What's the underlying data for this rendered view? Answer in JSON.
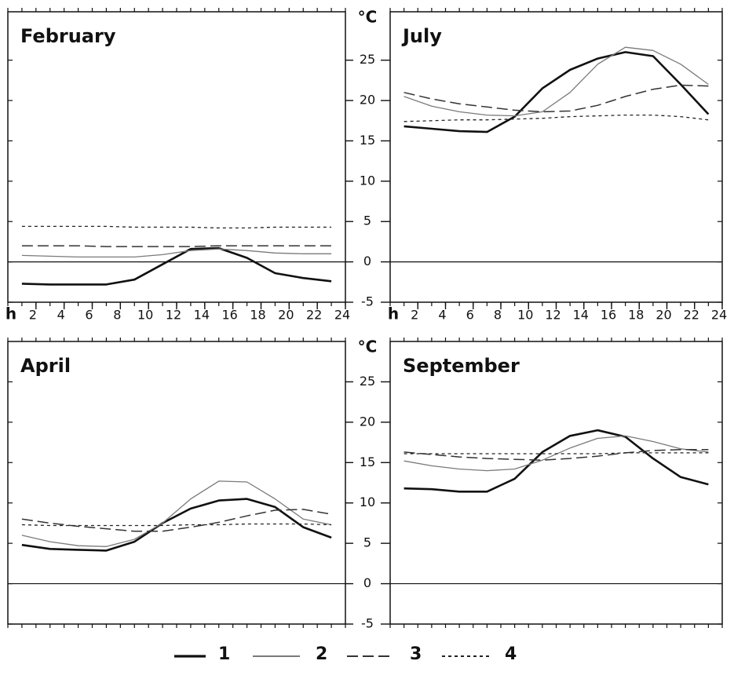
{
  "chart_data": [
    {
      "type": "line",
      "title": "February",
      "xlabel": "h",
      "ylabel": "°C",
      "x": [
        1,
        3,
        5,
        7,
        9,
        11,
        13,
        15,
        17,
        19,
        21,
        23
      ],
      "xlim": [
        0,
        24
      ],
      "ylim": [
        -5,
        31
      ],
      "xticks": [
        2,
        4,
        6,
        8,
        10,
        12,
        14,
        16,
        18,
        20,
        22,
        24
      ],
      "series": [
        {
          "values": [
            -2.7,
            -2.8,
            -2.8,
            -2.8,
            -2.2,
            -0.3,
            1.6,
            1.7,
            0.5,
            -1.4,
            -2.0,
            -2.4
          ]
        },
        {
          "values": [
            0.8,
            0.7,
            0.6,
            0.6,
            0.6,
            0.9,
            1.4,
            1.6,
            1.4,
            1.1,
            1.0,
            1.0
          ]
        },
        {
          "values": [
            2.0,
            2.0,
            2.0,
            1.9,
            1.9,
            1.9,
            1.9,
            2.0,
            2.0,
            2.0,
            2.0,
            2.0
          ]
        },
        {
          "values": [
            4.4,
            4.4,
            4.4,
            4.4,
            4.3,
            4.3,
            4.3,
            4.2,
            4.2,
            4.3,
            4.3,
            4.3
          ]
        }
      ]
    },
    {
      "type": "line",
      "title": "July",
      "xlabel": "h",
      "x": [
        1,
        3,
        5,
        7,
        9,
        11,
        13,
        15,
        17,
        19,
        21,
        23
      ],
      "xlim": [
        0,
        24
      ],
      "ylim": [
        -5,
        31
      ],
      "xticks": [
        2,
        4,
        6,
        8,
        10,
        12,
        14,
        16,
        18,
        20,
        22,
        24
      ],
      "yticks": [
        -5,
        0,
        5,
        10,
        15,
        20,
        25
      ],
      "series": [
        {
          "values": [
            16.8,
            16.5,
            16.2,
            16.1,
            18.0,
            21.5,
            23.8,
            25.2,
            26.0,
            25.5,
            22.0,
            18.3
          ]
        },
        {
          "values": [
            20.5,
            19.3,
            18.6,
            18.2,
            18.1,
            18.6,
            21.0,
            24.5,
            26.6,
            26.2,
            24.5,
            22.0
          ]
        },
        {
          "values": [
            21.0,
            20.2,
            19.6,
            19.2,
            18.8,
            18.6,
            18.7,
            19.4,
            20.5,
            21.4,
            21.9,
            21.8
          ]
        },
        {
          "values": [
            17.4,
            17.5,
            17.6,
            17.6,
            17.7,
            17.8,
            18.0,
            18.1,
            18.2,
            18.2,
            18.0,
            17.6
          ]
        }
      ]
    },
    {
      "type": "line",
      "title": "April",
      "ylabel": "°C",
      "x": [
        1,
        3,
        5,
        7,
        9,
        11,
        13,
        15,
        17,
        19,
        21,
        23
      ],
      "xlim": [
        0,
        24
      ],
      "ylim": [
        -5,
        30
      ],
      "series": [
        {
          "values": [
            4.8,
            4.3,
            4.2,
            4.1,
            5.2,
            7.5,
            9.3,
            10.3,
            10.5,
            9.5,
            7.0,
            5.7
          ]
        },
        {
          "values": [
            6.0,
            5.2,
            4.7,
            4.6,
            5.5,
            7.5,
            10.5,
            12.7,
            12.6,
            10.5,
            8.0,
            7.3
          ]
        },
        {
          "values": [
            8.0,
            7.5,
            7.1,
            6.8,
            6.5,
            6.5,
            7.0,
            7.6,
            8.4,
            9.1,
            9.2,
            8.6
          ]
        },
        {
          "values": [
            7.3,
            7.2,
            7.2,
            7.2,
            7.2,
            7.2,
            7.3,
            7.3,
            7.4,
            7.4,
            7.4,
            7.3
          ]
        }
      ]
    },
    {
      "type": "line",
      "title": "September",
      "x": [
        1,
        3,
        5,
        7,
        9,
        11,
        13,
        15,
        17,
        19,
        21,
        23
      ],
      "xlim": [
        0,
        24
      ],
      "ylim": [
        -5,
        30
      ],
      "yticks": [
        -5,
        0,
        5,
        10,
        15,
        20,
        25
      ],
      "series": [
        {
          "values": [
            11.8,
            11.7,
            11.4,
            11.4,
            13.0,
            16.3,
            18.3,
            19.0,
            18.2,
            15.5,
            13.2,
            12.3
          ]
        },
        {
          "values": [
            15.2,
            14.6,
            14.2,
            14.0,
            14.2,
            15.3,
            16.8,
            18.0,
            18.3,
            17.6,
            16.7,
            16.3
          ]
        },
        {
          "values": [
            16.3,
            16.0,
            15.7,
            15.5,
            15.4,
            15.3,
            15.5,
            15.8,
            16.2,
            16.5,
            16.6,
            16.6
          ]
        },
        {
          "values": [
            16.1,
            16.1,
            16.1,
            16.1,
            16.1,
            16.1,
            16.1,
            16.1,
            16.2,
            16.2,
            16.2,
            16.2
          ]
        }
      ]
    }
  ],
  "legend": [
    {
      "name": "1",
      "color": "#111111"
    },
    {
      "name": "2",
      "color": "#7a7a7a"
    },
    {
      "name": "3",
      "color": "#333333"
    },
    {
      "name": "4",
      "color": "#222222"
    }
  ]
}
